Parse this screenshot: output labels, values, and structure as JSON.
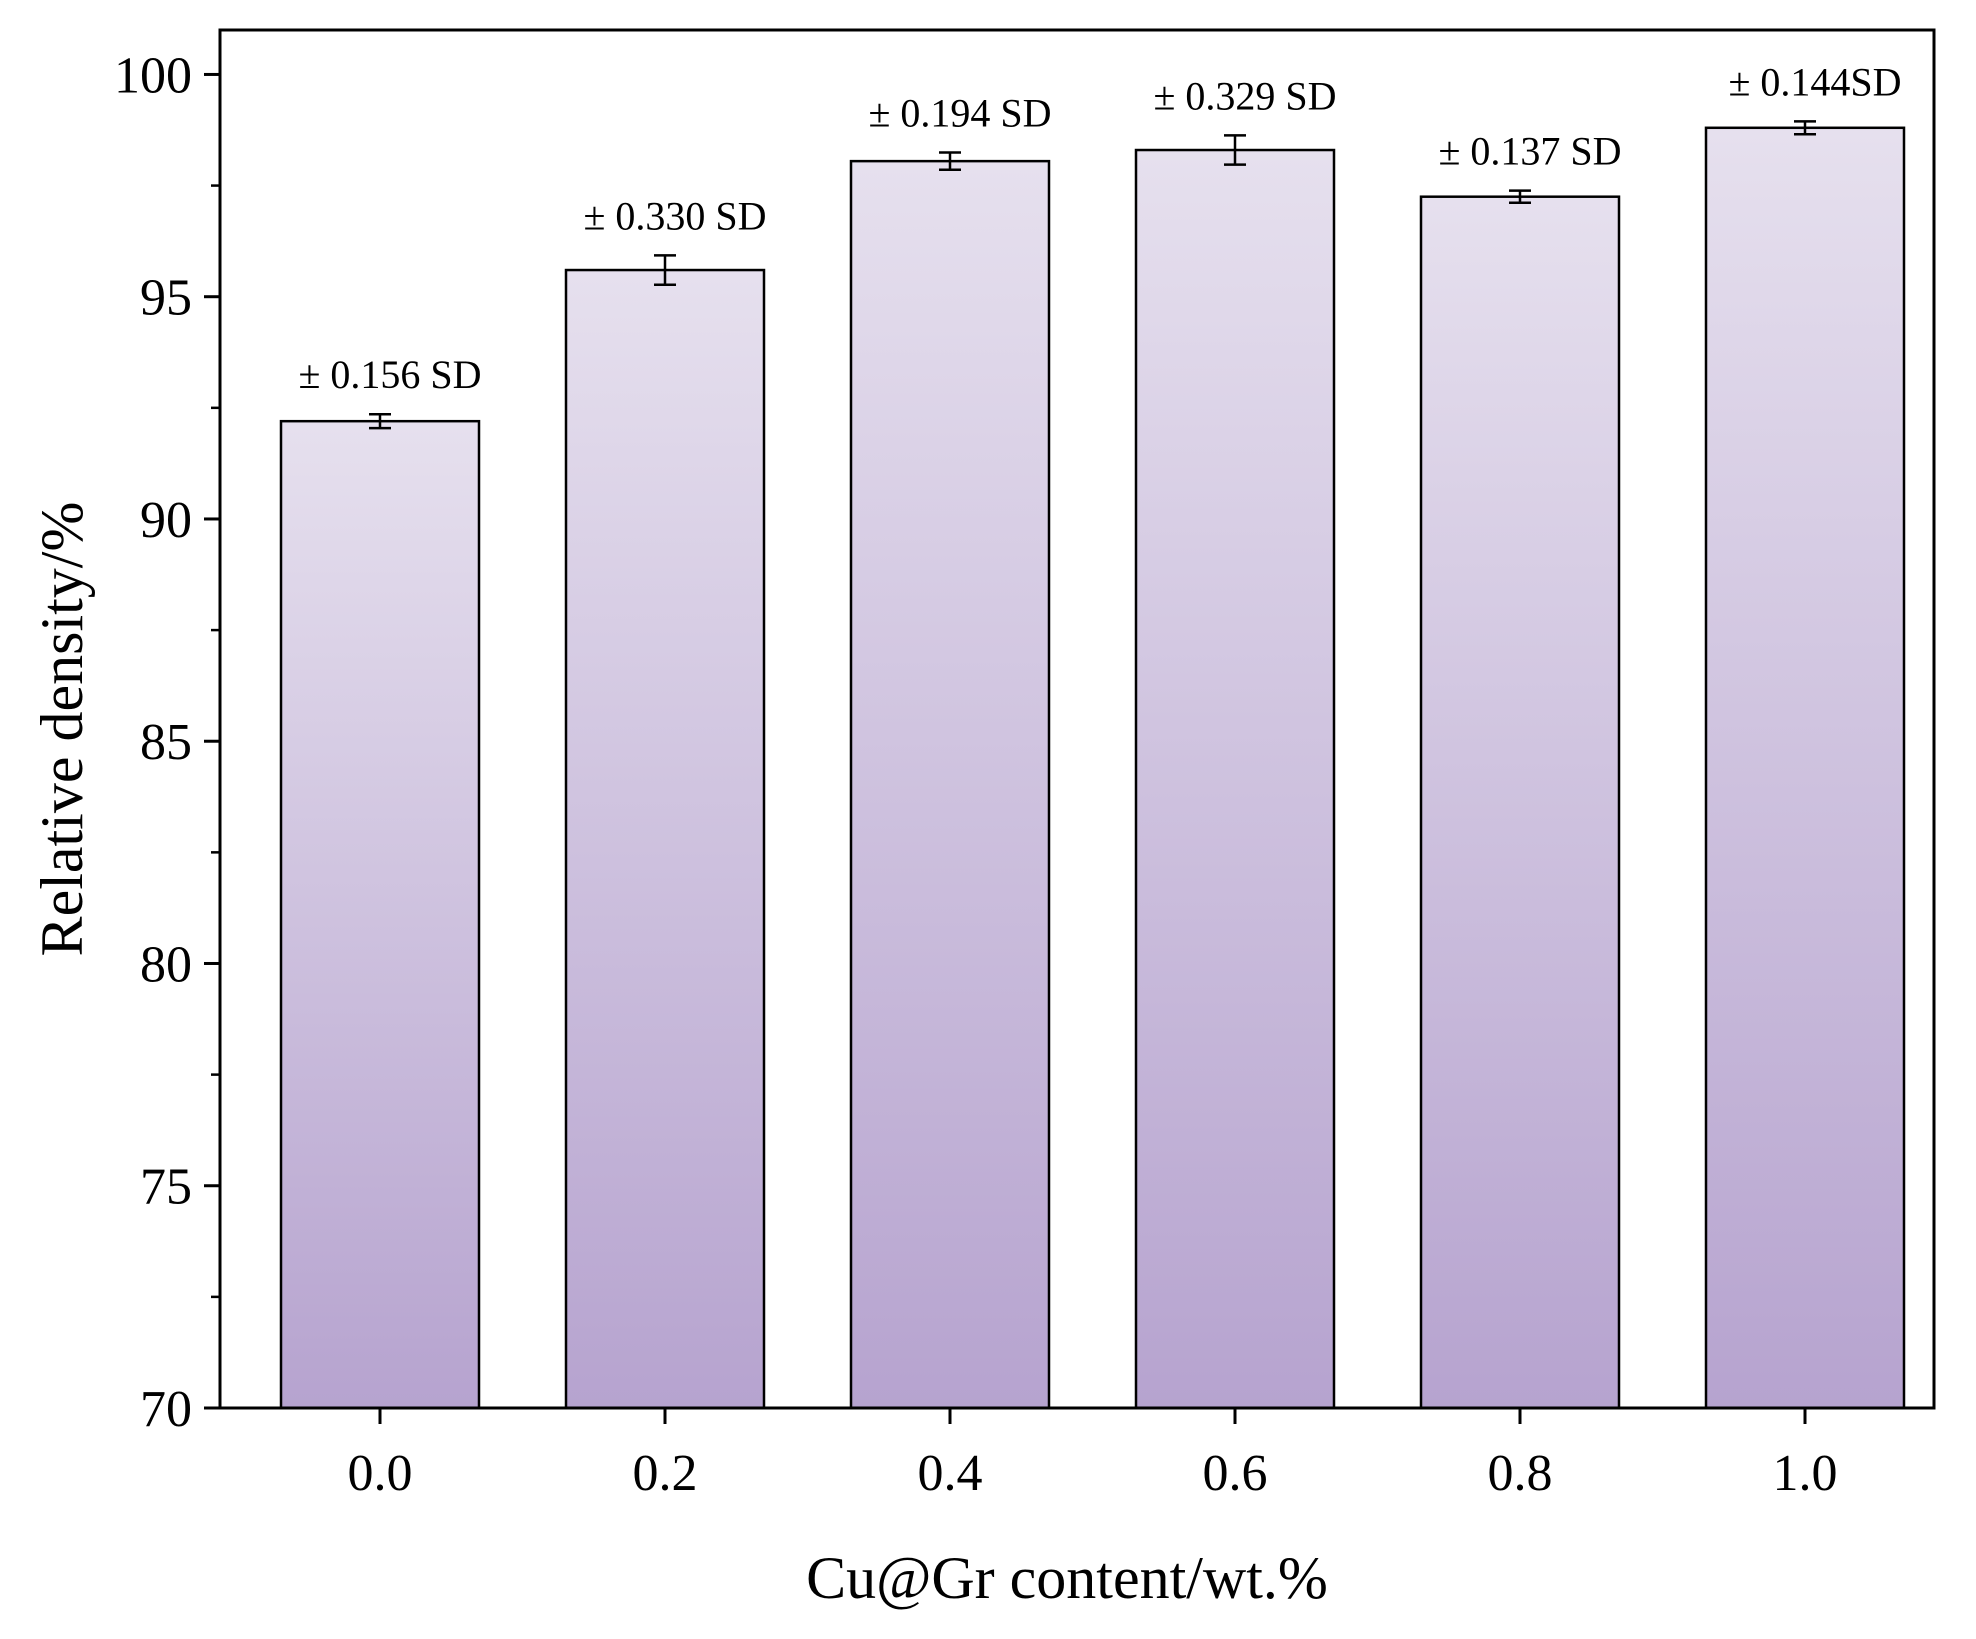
{
  "chart_data": {
    "type": "bar",
    "title": "",
    "xlabel": "Cu@Gr content/wt.%",
    "ylabel": "Relative density/%",
    "categories": [
      "0.0",
      "0.2",
      "0.4",
      "0.6",
      "0.8",
      "1.0"
    ],
    "values": [
      92.2,
      95.6,
      98.05,
      98.3,
      97.25,
      98.8
    ],
    "errors": [
      0.156,
      0.33,
      0.194,
      0.329,
      0.137,
      0.144
    ],
    "error_labels": [
      "± 0.156 SD",
      "± 0.330 SD",
      "± 0.194 SD",
      "± 0.329 SD",
      "± 0.137 SD",
      "± 0.144SD"
    ],
    "ylim": [
      70,
      101
    ],
    "yticks": [
      70,
      75,
      80,
      85,
      90,
      95,
      100
    ],
    "yticks_minor": [
      72.5,
      77.5,
      82.5,
      87.5,
      92.5,
      97.5
    ],
    "grid": false,
    "legend": "none",
    "colors": {
      "bar_top": "#e6e0ee",
      "bar_bottom": "#b6a3cf",
      "bar_stroke": "#000000",
      "axis": "#000000"
    }
  }
}
